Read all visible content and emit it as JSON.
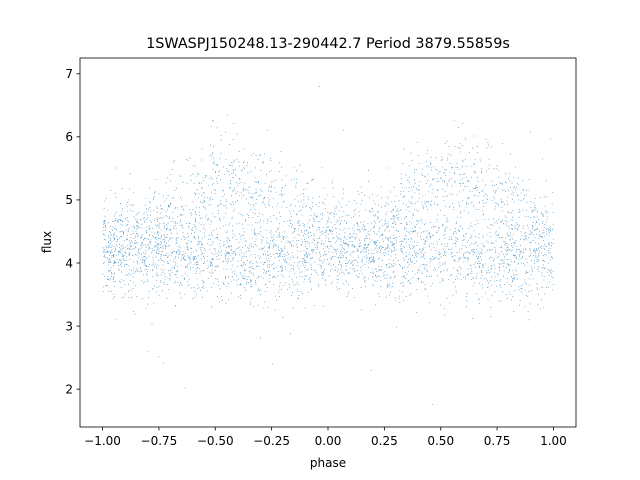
{
  "chart_data": {
    "type": "scatter",
    "title": "1SWASPJ150248.13-290442.7 Period 3879.55859s",
    "xlabel": "phase",
    "ylabel": "flux",
    "xlim": [
      -1.1,
      1.1
    ],
    "ylim": [
      1.4,
      7.25
    ],
    "x_ticks": [
      -1.0,
      -0.75,
      -0.5,
      -0.25,
      0.0,
      0.25,
      0.5,
      0.75,
      1.0
    ],
    "x_tick_labels": [
      "−1.00",
      "−0.75",
      "−0.50",
      "−0.25",
      "0.00",
      "0.25",
      "0.50",
      "0.75",
      "1.00"
    ],
    "y_ticks": [
      2,
      3,
      4,
      5,
      6,
      7
    ],
    "y_tick_labels": [
      "2",
      "3",
      "4",
      "5",
      "6",
      "7"
    ],
    "grid": false,
    "marker_color": "#1f77b4",
    "series": [
      {
        "x_range": [
          -1.0,
          1.0
        ],
        "point_count_approx": 30000,
        "profile": {
          "description_points_phase": [
            -1.0,
            -0.75,
            -0.6,
            -0.5,
            -0.4,
            -0.3,
            -0.2,
            -0.1,
            0.0,
            0.1,
            0.25,
            0.35,
            0.5,
            0.6,
            0.75,
            0.9,
            1.0
          ],
          "base_flux": [
            4.15,
            4.2,
            4.15,
            4.1,
            4.05,
            4.05,
            4.05,
            4.1,
            4.15,
            4.15,
            4.2,
            4.15,
            4.1,
            4.05,
            4.05,
            4.1,
            4.15
          ],
          "upper_branch_flux": [
            4.4,
            4.5,
            5.0,
            5.3,
            5.3,
            5.1,
            4.9,
            4.7,
            4.5,
            4.4,
            4.5,
            5.0,
            5.3,
            5.3,
            5.0,
            4.7,
            4.5
          ],
          "spread": 0.35,
          "outlier_range": [
            1.7,
            6.95
          ]
        }
      }
    ]
  }
}
